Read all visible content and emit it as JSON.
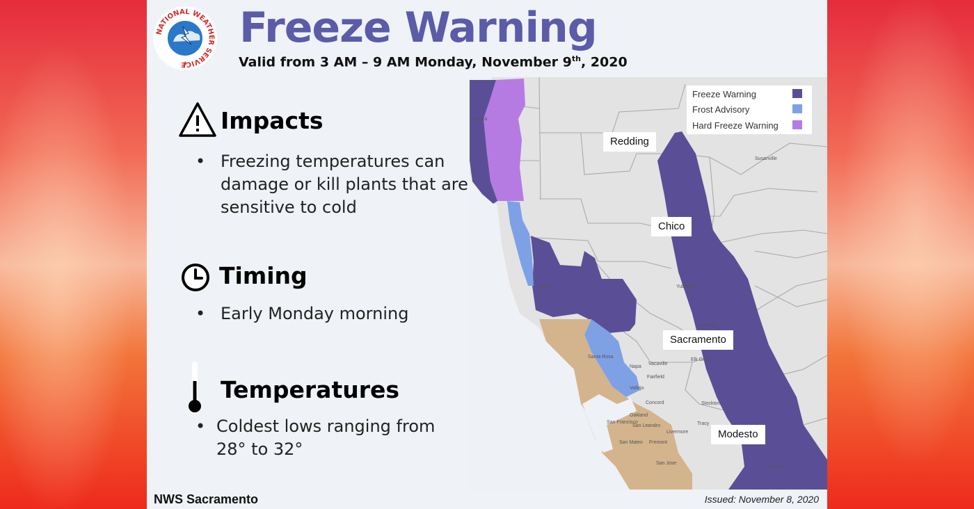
{
  "title": "Freeze Warning",
  "valid": {
    "prefix": "Valid from 3 AM – 9 AM Monday, November 9",
    "sup": "th",
    "suffix": ", 2020"
  },
  "logo_text": "NATIONAL WEATHER SERVICE",
  "sections": {
    "impacts": {
      "title": "Impacts",
      "bullet": "Freezing temperatures can damage or kill plants that are sensitive to cold"
    },
    "timing": {
      "title": "Timing",
      "bullet": "Early Monday morning"
    },
    "temperatures": {
      "title": "Temperatures",
      "bullet": "Coldest lows ranging from 28° to 32°"
    }
  },
  "bullet_char": "•",
  "legend": [
    {
      "label": "Freeze Warning",
      "color": "#5a4f96"
    },
    {
      "label": "Frost Advisory",
      "color": "#7ea1e6"
    },
    {
      "label": "Hard Freeze Warning",
      "color": "#b57be2"
    }
  ],
  "cities": [
    "Redding",
    "Chico",
    "Sacramento",
    "Modesto"
  ],
  "map_small_labels": [
    "Eureka",
    "Ukiah",
    "Santa Rosa",
    "Napa",
    "Vacaville",
    "Fairfield",
    "Vallejo",
    "Concord",
    "Oakland",
    "San Francisco",
    "San Leandro",
    "Livermore",
    "San Mateo",
    "Fremont",
    "San Jose",
    "Yuba City",
    "Roseville",
    "Elk Grove",
    "Stockton",
    "Tracy",
    "Merced",
    "Susanville"
  ],
  "colors": {
    "freeze": "#5a4f96",
    "frost": "#7ea1e6",
    "hard_freeze": "#b57be2",
    "coastal": "#d4b48c",
    "title": "#5b5ba8"
  },
  "footer": {
    "office": "NWS Sacramento",
    "issued": "Issued: November 8, 2020"
  }
}
